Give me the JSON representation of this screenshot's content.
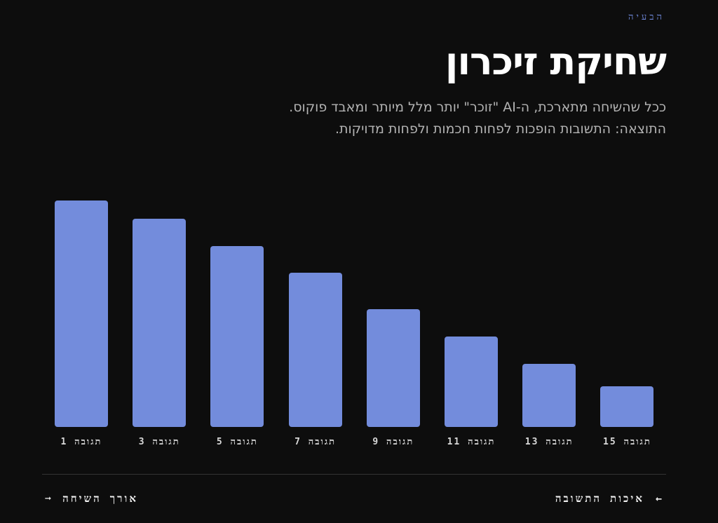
{
  "header": {
    "eyebrow": "הבעיה",
    "title": "שחיקת זיכרון",
    "subtitle_line1": "ככל שהשיחה מתארכת, ה-AI \"זוכר\" יותר מלל מיותר ומאבד פוקוס.",
    "subtitle_line2": "התוצאה: התשובות הופכות לפחות חכמות ולפחות מדויקות."
  },
  "colors": {
    "background": "#0d0d0d",
    "bar": "#738cdc",
    "accent": "#7089dc",
    "title": "#ffffff",
    "subtitle": "#b3b3b3"
  },
  "chart_data": {
    "type": "bar",
    "title": "",
    "xlabel": "",
    "ylabel": "",
    "categories": [
      "תגובה 1",
      "תגובה 3",
      "תגובה 5",
      "תגובה 7",
      "תגובה 9",
      "תגובה 11",
      "תגובה 13",
      "תגובה 15"
    ],
    "values": [
      100,
      92,
      80,
      68,
      52,
      40,
      28,
      18
    ],
    "ylim": [
      0,
      100
    ],
    "grid": false,
    "legend": "none",
    "note": "relative values (no y-axis shown); bar 1 normalized to 100"
  },
  "footer": {
    "prev_label": "איכות התשובה",
    "prev_arrow": "←",
    "next_label": "אורך השיחה",
    "next_arrow": "➞"
  }
}
